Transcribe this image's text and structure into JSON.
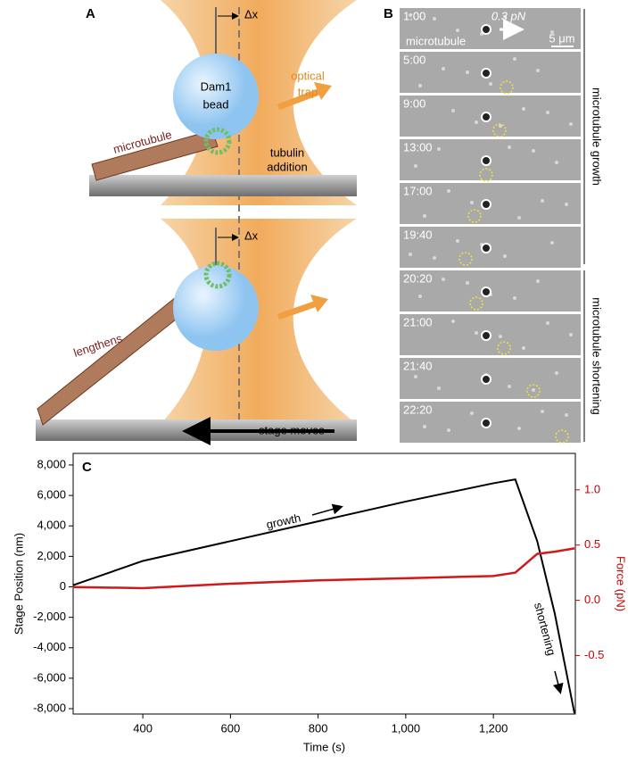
{
  "panel_a": {
    "label": "A",
    "dx_top": "Δx",
    "bead": [
      "Dam1",
      "bead"
    ],
    "trap": [
      "optical",
      "trap"
    ],
    "microtubule": "microtubule",
    "tubulin": [
      "tubulin",
      "addition"
    ],
    "dx_bottom": "Δx",
    "lengthens": "lengthens",
    "stage": "stage moves"
  },
  "panel_b": {
    "label": "B",
    "times": [
      "1:00",
      "5:00",
      "9:00",
      "13:00",
      "17:00",
      "19:40",
      "20:20",
      "21:00",
      "21:40",
      "22:20"
    ],
    "force": "0.3 pN",
    "microtubule": "microtubule",
    "scale": "5 μm",
    "growth": "microtubule growth",
    "shortening": "microtubule shortening"
  },
  "chart_data": {
    "type": "line",
    "panel_label": "C",
    "xlabel": "Time (s)",
    "ylabel": "Stage Position (nm)",
    "y2label": "Force (pN)",
    "annotations": [
      "growth",
      "shortening"
    ],
    "x": [
      240,
      400,
      600,
      800,
      1000,
      1200,
      1250,
      1300,
      1340,
      1385
    ],
    "series": [
      {
        "color": "#000000",
        "values": [
          100,
          1700,
          3000,
          4300,
          5600,
          6800,
          7050,
          3000,
          -1750,
          -8300
        ]
      },
      {
        "color": "#d11919",
        "axis": "y2",
        "values": [
          0.12,
          0.11,
          0.15,
          0.18,
          0.2,
          0.22,
          0.25,
          0.42,
          0.44,
          0.47
        ]
      }
    ],
    "xlim": [
      241,
      1387
    ],
    "xticks": [
      400,
      600,
      800,
      {
        "value": 1000,
        "label": "1,000"
      },
      {
        "value": 1200,
        "label": "1,200"
      }
    ],
    "ylim": [
      -8350,
      8760
    ],
    "yticks": [
      {
        "value": 8000,
        "label": "8,000"
      },
      {
        "value": 6000,
        "label": "6,000"
      },
      {
        "value": 4000,
        "label": "4,000"
      },
      {
        "value": 2000,
        "label": "2,000"
      },
      0,
      {
        "value": -2000,
        "label": "-2,000"
      },
      {
        "value": -4000,
        "label": "-4,000"
      },
      {
        "value": -6000,
        "label": "-6,000"
      },
      {
        "value": -8000,
        "label": "-8,000"
      }
    ],
    "y2lim": [
      -1.03,
      1.33
    ],
    "y2ticks": [
      {
        "value": 1,
        "label": "1.0"
      },
      0.5,
      {
        "value": 0,
        "label": "0.0"
      },
      -0.5
    ]
  }
}
